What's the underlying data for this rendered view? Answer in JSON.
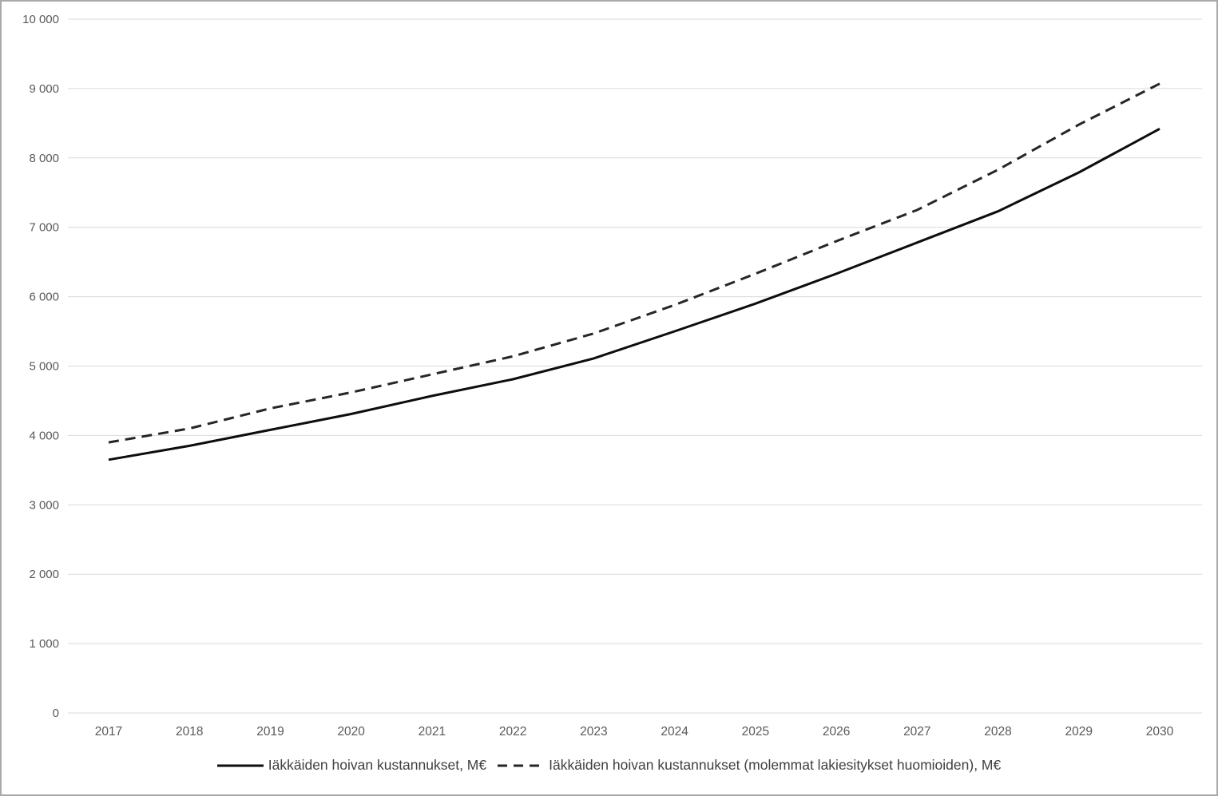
{
  "figure": {
    "background": "#ffffff",
    "border_color": "#a9a9a9"
  },
  "chart_data": {
    "type": "line",
    "x": [
      2017,
      2018,
      2019,
      2020,
      2021,
      2022,
      2023,
      2024,
      2025,
      2026,
      2027,
      2028,
      2029,
      2030
    ],
    "x_tick_labels": [
      "2017",
      "2018",
      "2019",
      "2020",
      "2021",
      "2022",
      "2023",
      "2024",
      "2025",
      "2026",
      "2027",
      "2028",
      "2029",
      "2030"
    ],
    "y_tick_labels": [
      "0",
      "1 000",
      "2 000",
      "3 000",
      "4 000",
      "5 000",
      "6 000",
      "7 000",
      "8 000",
      "9 000",
      "10 000"
    ],
    "ylim": [
      0,
      10000
    ],
    "y_tick_step": 1000,
    "grid": "horizontal-only",
    "legend_position": "bottom-center",
    "gridline_color": "#d9d9d9",
    "axis_label_color": "#595959",
    "legend_text_color": "#404040",
    "series": [
      {
        "name": "Iäkkäiden hoivan kustannukset, M€",
        "style": "solid",
        "color": "#0d0d0d",
        "values": [
          3650,
          3850,
          4080,
          4310,
          4570,
          4810,
          5110,
          5500,
          5900,
          6330,
          6780,
          7230,
          7790,
          8420
        ]
      },
      {
        "name": "Iäkkäiden hoivan kustannukset (molemmat lakiesitykset huomioiden), M€",
        "style": "dashed",
        "color": "#262626",
        "values": [
          3900,
          4100,
          4390,
          4620,
          4880,
          5140,
          5470,
          5880,
          6330,
          6800,
          7250,
          7830,
          8480,
          9070
        ]
      }
    ]
  }
}
